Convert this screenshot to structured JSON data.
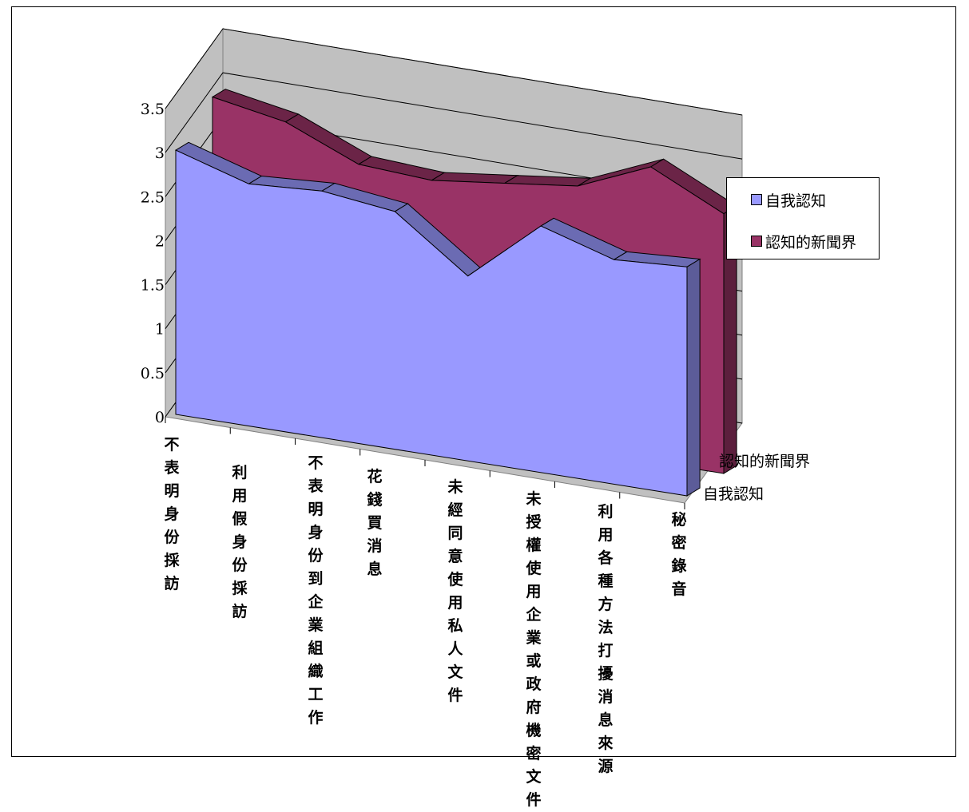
{
  "chart_data": {
    "type": "area",
    "title": "",
    "xlabel": "",
    "ylabel": "",
    "ylim": [
      0,
      3.5
    ],
    "y_ticks": [
      "0",
      "0.5",
      "1",
      "1.5",
      "2",
      "2.5",
      "3",
      "3.5"
    ],
    "grid": true,
    "legend_position": "right",
    "categories": [
      "不表明身份採訪",
      "利用假身份採訪",
      "不表明身份到企業組織工作",
      "花錢買消息",
      "未經同意使用私人文件",
      "未授權使用企業或政府機密文件",
      "利用各種方法打擾消息來源",
      "秘密錄音"
    ],
    "series": [
      {
        "name": "自我認知",
        "color": "#9999ff",
        "values": [
          3.0,
          2.75,
          2.8,
          2.7,
          2.1,
          2.8,
          2.55,
          2.6
        ]
      },
      {
        "name": "認知的新聞界",
        "color": "#993366",
        "values": [
          3.35,
          3.2,
          2.85,
          2.8,
          2.9,
          3.0,
          3.35,
          2.95
        ]
      }
    ]
  },
  "legend": {
    "items": [
      {
        "label": "自我認知",
        "color": "#9999ff"
      },
      {
        "label": "認知的新聞界",
        "color": "#993366"
      }
    ]
  },
  "depth_axis": {
    "labels": [
      "自我認知",
      "認知的新聞界"
    ]
  }
}
